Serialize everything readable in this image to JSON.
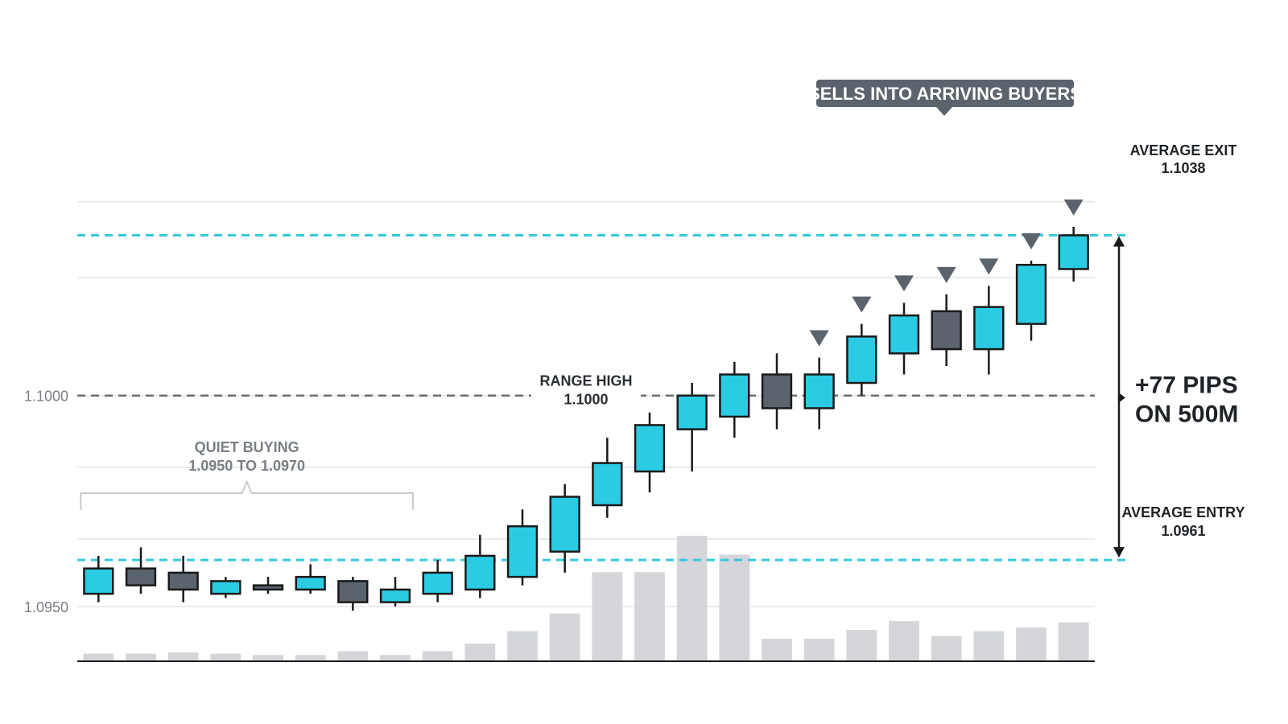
{
  "chart_data": {
    "type": "candlestick",
    "y_ticks": [
      {
        "value": 1.1,
        "label": "1.1000"
      },
      {
        "value": 1.095,
        "label": "1.0950"
      }
    ],
    "ylim": [
      1.0937,
      1.1069
    ],
    "grid": true,
    "candles": [
      {
        "o": 1.0953,
        "h": 1.0962,
        "l": 1.0951,
        "c": 1.0959,
        "dir": "up"
      },
      {
        "o": 1.0959,
        "h": 1.0964,
        "l": 1.0953,
        "c": 1.0955,
        "dir": "down"
      },
      {
        "o": 1.0958,
        "h": 1.0962,
        "l": 1.0951,
        "c": 1.0954,
        "dir": "down"
      },
      {
        "o": 1.0953,
        "h": 1.0957,
        "l": 1.0952,
        "c": 1.0956,
        "dir": "up"
      },
      {
        "o": 1.0954,
        "h": 1.0957,
        "l": 1.0953,
        "c": 1.0955,
        "dir": "down"
      },
      {
        "o": 1.0954,
        "h": 1.096,
        "l": 1.0953,
        "c": 1.0957,
        "dir": "up"
      },
      {
        "o": 1.0956,
        "h": 1.0957,
        "l": 1.0949,
        "c": 1.0951,
        "dir": "down"
      },
      {
        "o": 1.0951,
        "h": 1.0957,
        "l": 1.095,
        "c": 1.0954,
        "dir": "up"
      },
      {
        "o": 1.0953,
        "h": 1.0961,
        "l": 1.0951,
        "c": 1.0958,
        "dir": "up"
      },
      {
        "o": 1.0954,
        "h": 1.0967,
        "l": 1.0952,
        "c": 1.0962,
        "dir": "up"
      },
      {
        "o": 1.0957,
        "h": 1.0973,
        "l": 1.0955,
        "c": 1.0969,
        "dir": "up"
      },
      {
        "o": 1.0963,
        "h": 1.0979,
        "l": 1.0958,
        "c": 1.0976,
        "dir": "up"
      },
      {
        "o": 1.0974,
        "h": 1.099,
        "l": 1.0971,
        "c": 1.0984,
        "dir": "up"
      },
      {
        "o": 1.0982,
        "h": 1.0996,
        "l": 1.0977,
        "c": 1.0993,
        "dir": "up"
      },
      {
        "o": 1.0992,
        "h": 1.1003,
        "l": 1.0982,
        "c": 1.1,
        "dir": "up"
      },
      {
        "o": 1.0995,
        "h": 1.1008,
        "l": 1.099,
        "c": 1.1005,
        "dir": "up"
      },
      {
        "o": 1.1005,
        "h": 1.101,
        "l": 1.0992,
        "c": 1.0997,
        "dir": "down"
      },
      {
        "o": 1.0997,
        "h": 1.1009,
        "l": 1.0992,
        "c": 1.1005,
        "dir": "up"
      },
      {
        "o": 1.1003,
        "h": 1.1017,
        "l": 1.1,
        "c": 1.1014,
        "dir": "up"
      },
      {
        "o": 1.101,
        "h": 1.1022,
        "l": 1.1005,
        "c": 1.1019,
        "dir": "up"
      },
      {
        "o": 1.102,
        "h": 1.1024,
        "l": 1.1007,
        "c": 1.1011,
        "dir": "down"
      },
      {
        "o": 1.1011,
        "h": 1.1026,
        "l": 1.1005,
        "c": 1.1021,
        "dir": "up"
      },
      {
        "o": 1.1017,
        "h": 1.1032,
        "l": 1.1013,
        "c": 1.1031,
        "dir": "up"
      },
      {
        "o": 1.103,
        "h": 1.104,
        "l": 1.1027,
        "c": 1.1038,
        "dir": "up"
      }
    ],
    "volume": [
      0.06,
      0.06,
      0.07,
      0.06,
      0.05,
      0.05,
      0.08,
      0.05,
      0.08,
      0.14,
      0.24,
      0.38,
      0.71,
      0.71,
      1.0,
      0.85,
      0.18,
      0.18,
      0.25,
      0.32,
      0.2,
      0.24,
      0.27,
      0.31
    ],
    "sell_markers": [
      17,
      18,
      19,
      20,
      21,
      22,
      23
    ],
    "levels": {
      "average_exit": {
        "value": 1.1038,
        "label": "AVERAGE EXIT",
        "value_label": "1.1038"
      },
      "average_entry": {
        "value": 1.0961,
        "label": "AVERAGE ENTRY",
        "value_label": "1.0961"
      },
      "range_high": {
        "value": 1.1,
        "label": "RANGE HIGH",
        "value_label": "1.1000"
      }
    },
    "annotations": {
      "callout": "SELLS INTO ARRIVING BUYERS",
      "quiet_buying_title": "QUIET BUYING",
      "quiet_buying_range": "1.0950 TO 1.0970",
      "quiet_buying_from_candle": 0,
      "quiet_buying_to_candle": 7,
      "pips_line1": "+77 PIPS",
      "pips_line2": "ON 500M"
    },
    "colors": {
      "up": "#2ccbe4",
      "down": "#5b636c",
      "wick": "#1a1a1a",
      "volume": "#d4d6da",
      "level_line": "#33c9dd",
      "range_line": "#6a6d72",
      "grid": "#e4e4e6",
      "marker": "#5b636c",
      "muted_text": "#7a7f86"
    }
  }
}
